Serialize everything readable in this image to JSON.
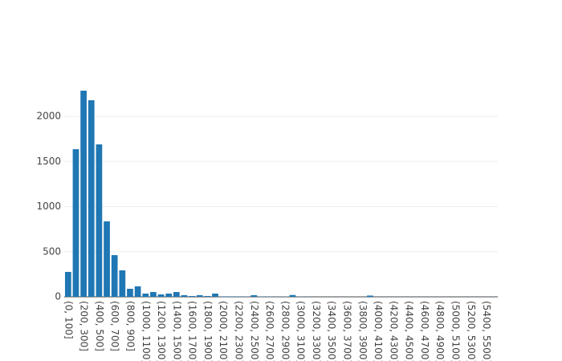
{
  "chart_data": {
    "type": "bar",
    "categories": [
      "(0, 100]",
      null,
      "(200, 300]",
      null,
      "(400, 500]",
      null,
      "(600, 700]",
      null,
      "(800, 900]",
      null,
      "(1000, 1100]",
      null,
      "(1200, 1300]",
      null,
      "(1400, 1500]",
      null,
      "(1600, 1700]",
      null,
      "(1800, 1900]",
      null,
      "(2000, 2100]",
      null,
      "(2200, 2300]",
      null,
      "(2400, 2500]",
      null,
      "(2600, 2700]",
      null,
      "(2800, 2900]",
      null,
      "(3000, 3100]",
      null,
      "(3200, 3300]",
      null,
      "(3400, 3500]",
      null,
      "(3600, 3700]",
      null,
      "(3800, 3900]",
      null,
      "(4000, 4100]",
      null,
      "(4200, 4300]",
      null,
      "(4400, 4500]",
      null,
      "(4600, 4700]",
      null,
      "(4800, 4900]",
      null,
      "(5000, 5100]",
      null,
      "(5200, 5300]",
      null,
      "(5400, 5500]",
      null
    ],
    "values": [
      276,
      1636,
      2284,
      2178,
      1689,
      836,
      462,
      293,
      89,
      116,
      36,
      53,
      27,
      36,
      53,
      18,
      9,
      18,
      9,
      36,
      5,
      5,
      5,
      3,
      18,
      3,
      3,
      2,
      3,
      20,
      2,
      2,
      1,
      1,
      1,
      1,
      1,
      1,
      1,
      14,
      1,
      1,
      1,
      1,
      1,
      1,
      1,
      1,
      1,
      1,
      1,
      1,
      1,
      1,
      1,
      1
    ],
    "color": "#1f77b4",
    "ylim": [
      0,
      2400
    ],
    "yticks": [
      0,
      500,
      1000,
      1500,
      2000
    ],
    "grid": true
  }
}
